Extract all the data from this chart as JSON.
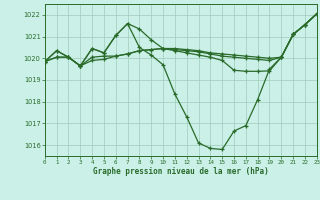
{
  "background_color": "#caf0e8",
  "grid_color": "#a0ccbb",
  "line_color": "#2a6b2a",
  "title": "Graphe pression niveau de la mer (hPa)",
  "xlim": [
    0,
    23
  ],
  "ylim": [
    1015.5,
    1022.5
  ],
  "yticks": [
    1016,
    1017,
    1018,
    1019,
    1020,
    1021,
    1022
  ],
  "xticks": [
    0,
    1,
    2,
    3,
    4,
    5,
    6,
    7,
    8,
    9,
    10,
    11,
    12,
    13,
    14,
    15,
    16,
    17,
    18,
    19,
    20,
    21,
    22,
    23
  ],
  "series1": [
    1019.85,
    1020.35,
    1020.05,
    1019.65,
    1020.45,
    1020.25,
    1021.05,
    1021.6,
    1020.5,
    1020.15,
    1019.7,
    1018.35,
    1017.3,
    1016.1,
    1015.85,
    1015.8,
    1016.65,
    1016.9,
    1018.1,
    1019.5,
    1020.05,
    1021.1,
    1021.55,
    1022.05
  ],
  "series2": [
    1019.85,
    1020.05,
    1020.05,
    1019.65,
    1020.05,
    1020.1,
    1020.1,
    1020.2,
    1020.35,
    1020.4,
    1020.45,
    1020.45,
    1020.4,
    1020.35,
    1020.25,
    1020.2,
    1020.15,
    1020.1,
    1020.05,
    1020.0,
    1020.05,
    1021.1,
    1021.55,
    1022.05
  ],
  "series3": [
    1019.85,
    1020.05,
    1020.05,
    1019.65,
    1019.9,
    1019.95,
    1020.1,
    1020.2,
    1020.35,
    1020.4,
    1020.45,
    1020.4,
    1020.35,
    1020.3,
    1020.2,
    1020.1,
    1020.05,
    1020.0,
    1019.95,
    1019.9,
    1020.05,
    1021.1,
    1021.55,
    1022.05
  ],
  "series4": [
    1019.85,
    1020.35,
    1020.05,
    1019.65,
    1020.45,
    1020.25,
    1021.05,
    1021.6,
    1021.35,
    1020.85,
    1020.45,
    1020.35,
    1020.25,
    1020.15,
    1020.05,
    1019.9,
    1019.45,
    1019.4,
    1019.4,
    1019.42,
    1020.05,
    1021.1,
    1021.55,
    1022.05
  ]
}
